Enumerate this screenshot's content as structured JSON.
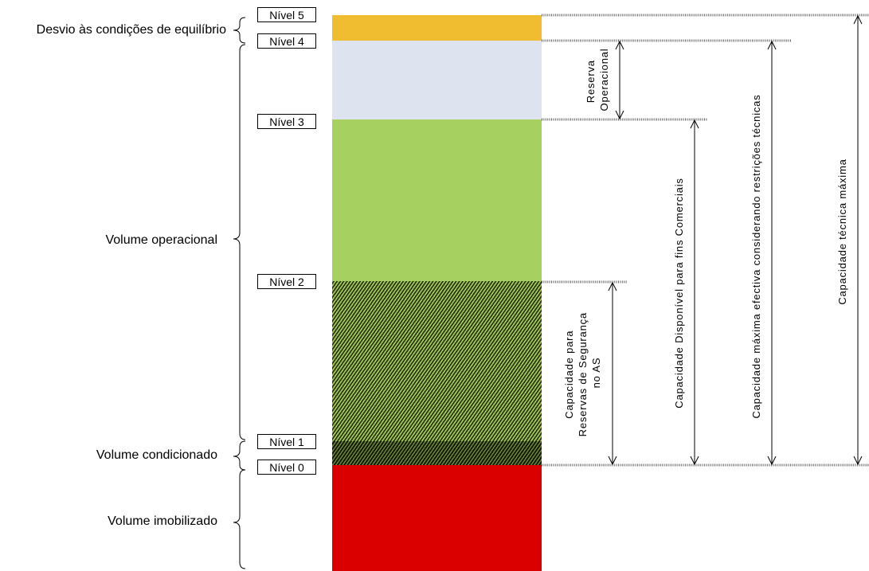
{
  "zones": [
    {
      "id": "desvio",
      "label": "Desvio às condições de equilíbrio"
    },
    {
      "id": "operacional",
      "label": "Volume operacional"
    },
    {
      "id": "condicionado",
      "label": "Volume condicionado"
    },
    {
      "id": "imobilizado",
      "label": "Volume imobilizado"
    }
  ],
  "levels": [
    "Nível 5",
    "Nível 4",
    "Nível 3",
    "Nível 2",
    "Nível 1",
    "Nível 0"
  ],
  "band_colors": {
    "desvio": "#f0bc30",
    "reserva_operacional": "#dde3ef",
    "comercial": "#a6d05f",
    "seguranca": "#5f7a2e",
    "condicionado": "#2c3616",
    "imobilizado": "#db0000"
  },
  "measures": {
    "reserva_operacional": [
      "Reserva",
      "Operacional"
    ],
    "seguranca": [
      "Capacidade para",
      "Reservas de Segurança",
      "no AS"
    ],
    "comercial": "Capacidade  Disponível para fins Comerciais",
    "efectiva": "Capacidade  máxima efectiva considerando restrições técnicas",
    "maxima": "Capacidade técnica máxima"
  }
}
